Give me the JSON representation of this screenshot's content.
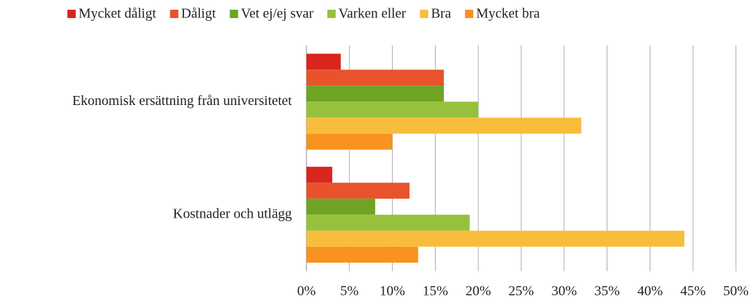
{
  "chart_data": {
    "type": "hbar",
    "categories": [
      "Ekonomisk ersättning från universitetet",
      "Kostnader och utlägg"
    ],
    "series": [
      {
        "name": "Mycket dåligt",
        "color": "#d9261c",
        "values": [
          4,
          3
        ]
      },
      {
        "name": "Dåligt",
        "color": "#e8532b",
        "values": [
          16,
          12
        ]
      },
      {
        "name": "Vet ej/ej svar",
        "color": "#6ea324",
        "values": [
          16,
          8
        ]
      },
      {
        "name": "Varken eller",
        "color": "#97c13d",
        "values": [
          20,
          19
        ]
      },
      {
        "name": "Bra",
        "color": "#f9bd3c",
        "values": [
          32,
          44
        ]
      },
      {
        "name": "Mycket bra",
        "color": "#f7931e",
        "values": [
          10,
          13
        ]
      }
    ],
    "xlim": [
      0,
      50
    ],
    "xticks": [
      {
        "value": 0,
        "label": "0%"
      },
      {
        "value": 5,
        "label": "5%"
      },
      {
        "value": 10,
        "label": "10%"
      },
      {
        "value": 15,
        "label": "15%"
      },
      {
        "value": 20,
        "label": "20%"
      },
      {
        "value": 25,
        "label": "25%"
      },
      {
        "value": 30,
        "label": "30%"
      },
      {
        "value": 35,
        "label": "35%"
      },
      {
        "value": 40,
        "label": "40%"
      },
      {
        "value": 45,
        "label": "45%"
      },
      {
        "value": 50,
        "label": "50%"
      }
    ],
    "grid": true,
    "legend": "top"
  }
}
